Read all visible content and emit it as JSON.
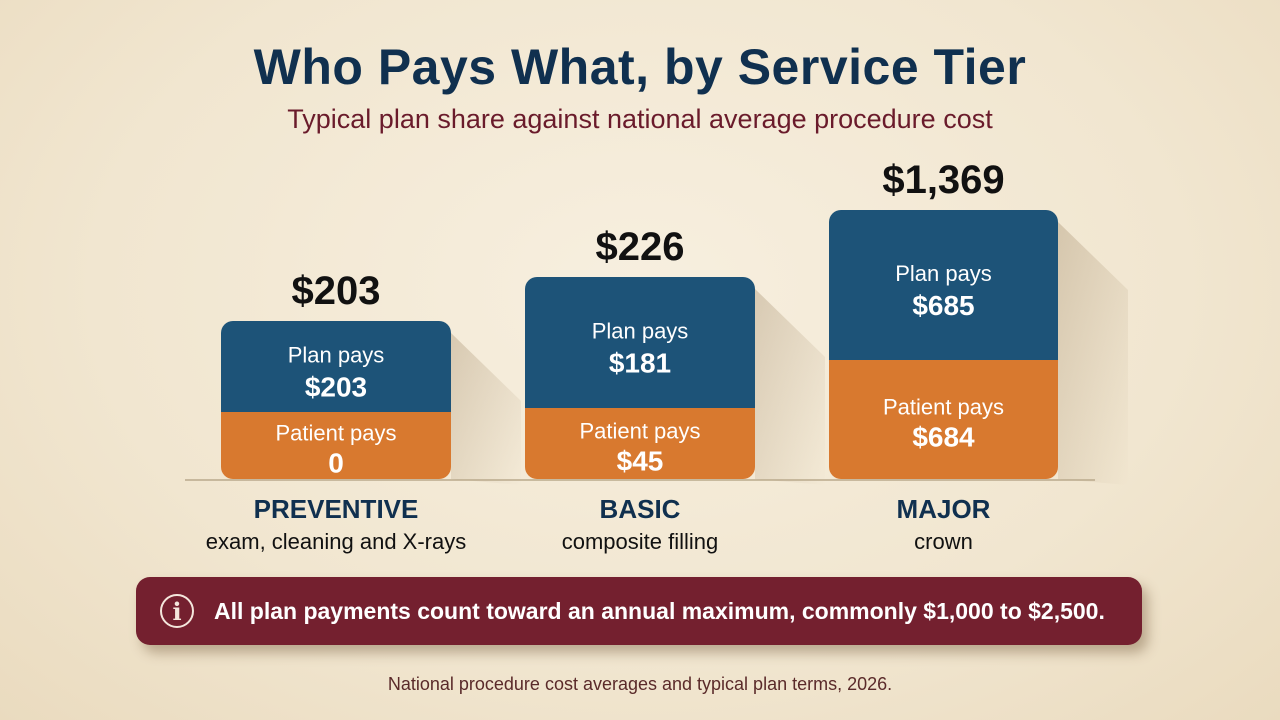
{
  "title": "Who Pays What, by Service Tier",
  "subtitle": "Typical plan share against national average procedure cost",
  "colors": {
    "plan": "#1d5378",
    "patient": "#d8792f",
    "note_bg": "#74202f",
    "title": "#10304f"
  },
  "chart_data": {
    "type": "bar",
    "stacked": true,
    "categories": [
      "PREVENTIVE",
      "BASIC",
      "MAJOR"
    ],
    "category_descriptions": [
      "exam, cleaning and X-rays",
      "composite filling",
      "crown"
    ],
    "totals": [
      "$203",
      "$226",
      "$1,369"
    ],
    "series": [
      {
        "name": "Plan pays",
        "values": [
          203,
          181,
          685
        ],
        "labels": [
          "$203",
          "$181",
          "$685"
        ]
      },
      {
        "name": "Patient pays",
        "values": [
          0,
          45,
          684
        ],
        "labels": [
          "0",
          "$45",
          "$684"
        ]
      }
    ]
  },
  "note": {
    "icon": "info-icon",
    "glyph": "i",
    "text": "All plan payments count toward an annual maximum, commonly $1,000 to $2,500."
  },
  "source": "National procedure cost averages and typical plan terms, 2026."
}
